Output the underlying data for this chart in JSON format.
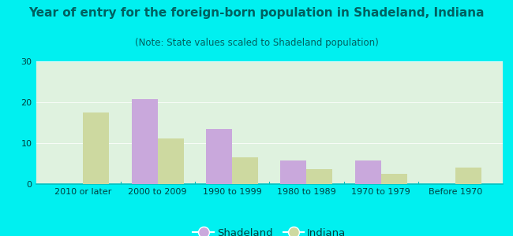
{
  "title": "Year of entry for the foreign-born population in Shadeland, Indiana",
  "subtitle": "(Note: State values scaled to Shadeland population)",
  "categories": [
    "2010 or later",
    "2000 to 2009",
    "1990 to 1999",
    "1980 to 1989",
    "1970 to 1979",
    "Before 1970"
  ],
  "shadeland_values": [
    0,
    20.8,
    13.5,
    5.8,
    5.8,
    0
  ],
  "indiana_values": [
    17.5,
    11.2,
    6.5,
    3.7,
    2.5,
    4.0
  ],
  "shadeland_color": "#c9a8dc",
  "indiana_color": "#cdd9a0",
  "background_outer": "#00f0f0",
  "background_inner": "#dff2df",
  "title_color": "#006060",
  "subtitle_color": "#006060",
  "tick_color": "#004040",
  "ylim": [
    0,
    30
  ],
  "yticks": [
    0,
    10,
    20,
    30
  ],
  "title_fontsize": 11,
  "subtitle_fontsize": 8.5,
  "tick_fontsize": 8,
  "legend_fontsize": 9.5,
  "bar_width": 0.35
}
